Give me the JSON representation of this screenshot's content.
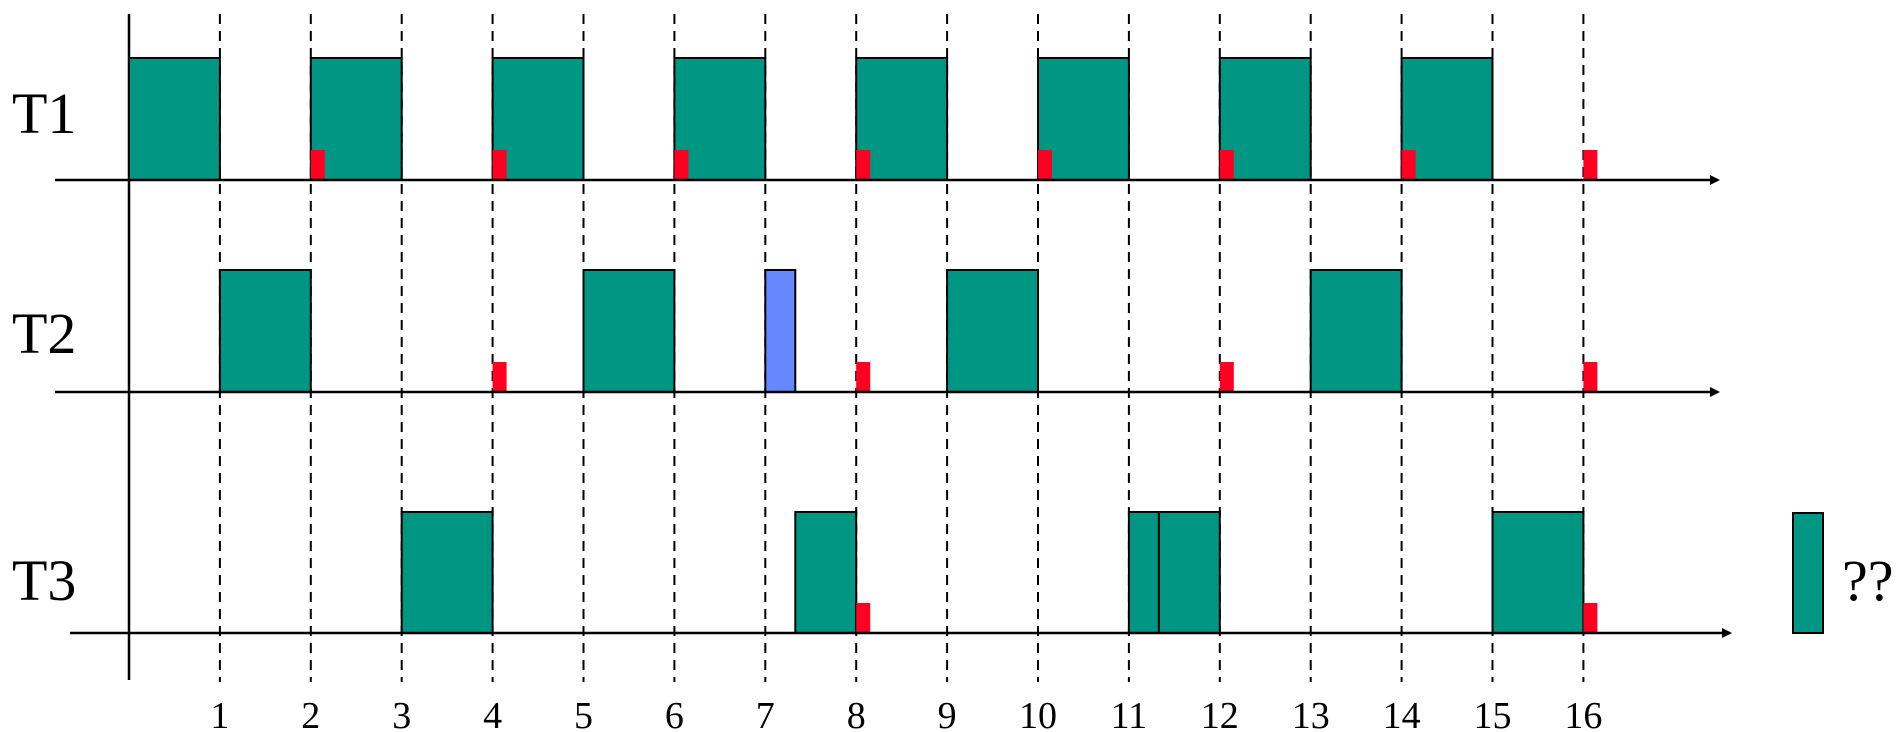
{
  "colors": {
    "job": "#009684",
    "overrun": "#6688ff",
    "deadline": "#ff0022",
    "line": "#000000"
  },
  "time_axis": {
    "ticks": [
      "1",
      "2",
      "3",
      "4",
      "5",
      "6",
      "7",
      "8",
      "9",
      "10",
      "11",
      "12",
      "13",
      "14",
      "15",
      "16"
    ]
  },
  "tasks": [
    {
      "label": "T1",
      "jobs": [
        [
          0,
          1
        ],
        [
          2,
          3
        ],
        [
          4,
          5
        ],
        [
          6,
          7
        ],
        [
          8,
          9
        ],
        [
          10,
          11
        ],
        [
          12,
          13
        ],
        [
          14,
          15
        ]
      ],
      "overruns": [],
      "deadlines": [
        2,
        4,
        6,
        8,
        10,
        12,
        14,
        16
      ]
    },
    {
      "label": "T2",
      "jobs": [
        [
          1,
          2
        ],
        [
          5,
          6
        ],
        [
          9,
          10
        ],
        [
          13,
          14
        ]
      ],
      "overruns": [
        [
          7,
          7.33
        ]
      ],
      "deadlines": [
        4,
        8,
        12,
        16
      ]
    },
    {
      "label": "T3",
      "jobs": [
        [
          3,
          4
        ],
        [
          7.33,
          8
        ],
        [
          11,
          11.33
        ],
        [
          11.33,
          12
        ],
        [
          15,
          16
        ]
      ],
      "overruns": [],
      "deadlines": [
        8,
        16
      ]
    }
  ],
  "legend": {
    "text": "??",
    "icon": "job-block"
  }
}
